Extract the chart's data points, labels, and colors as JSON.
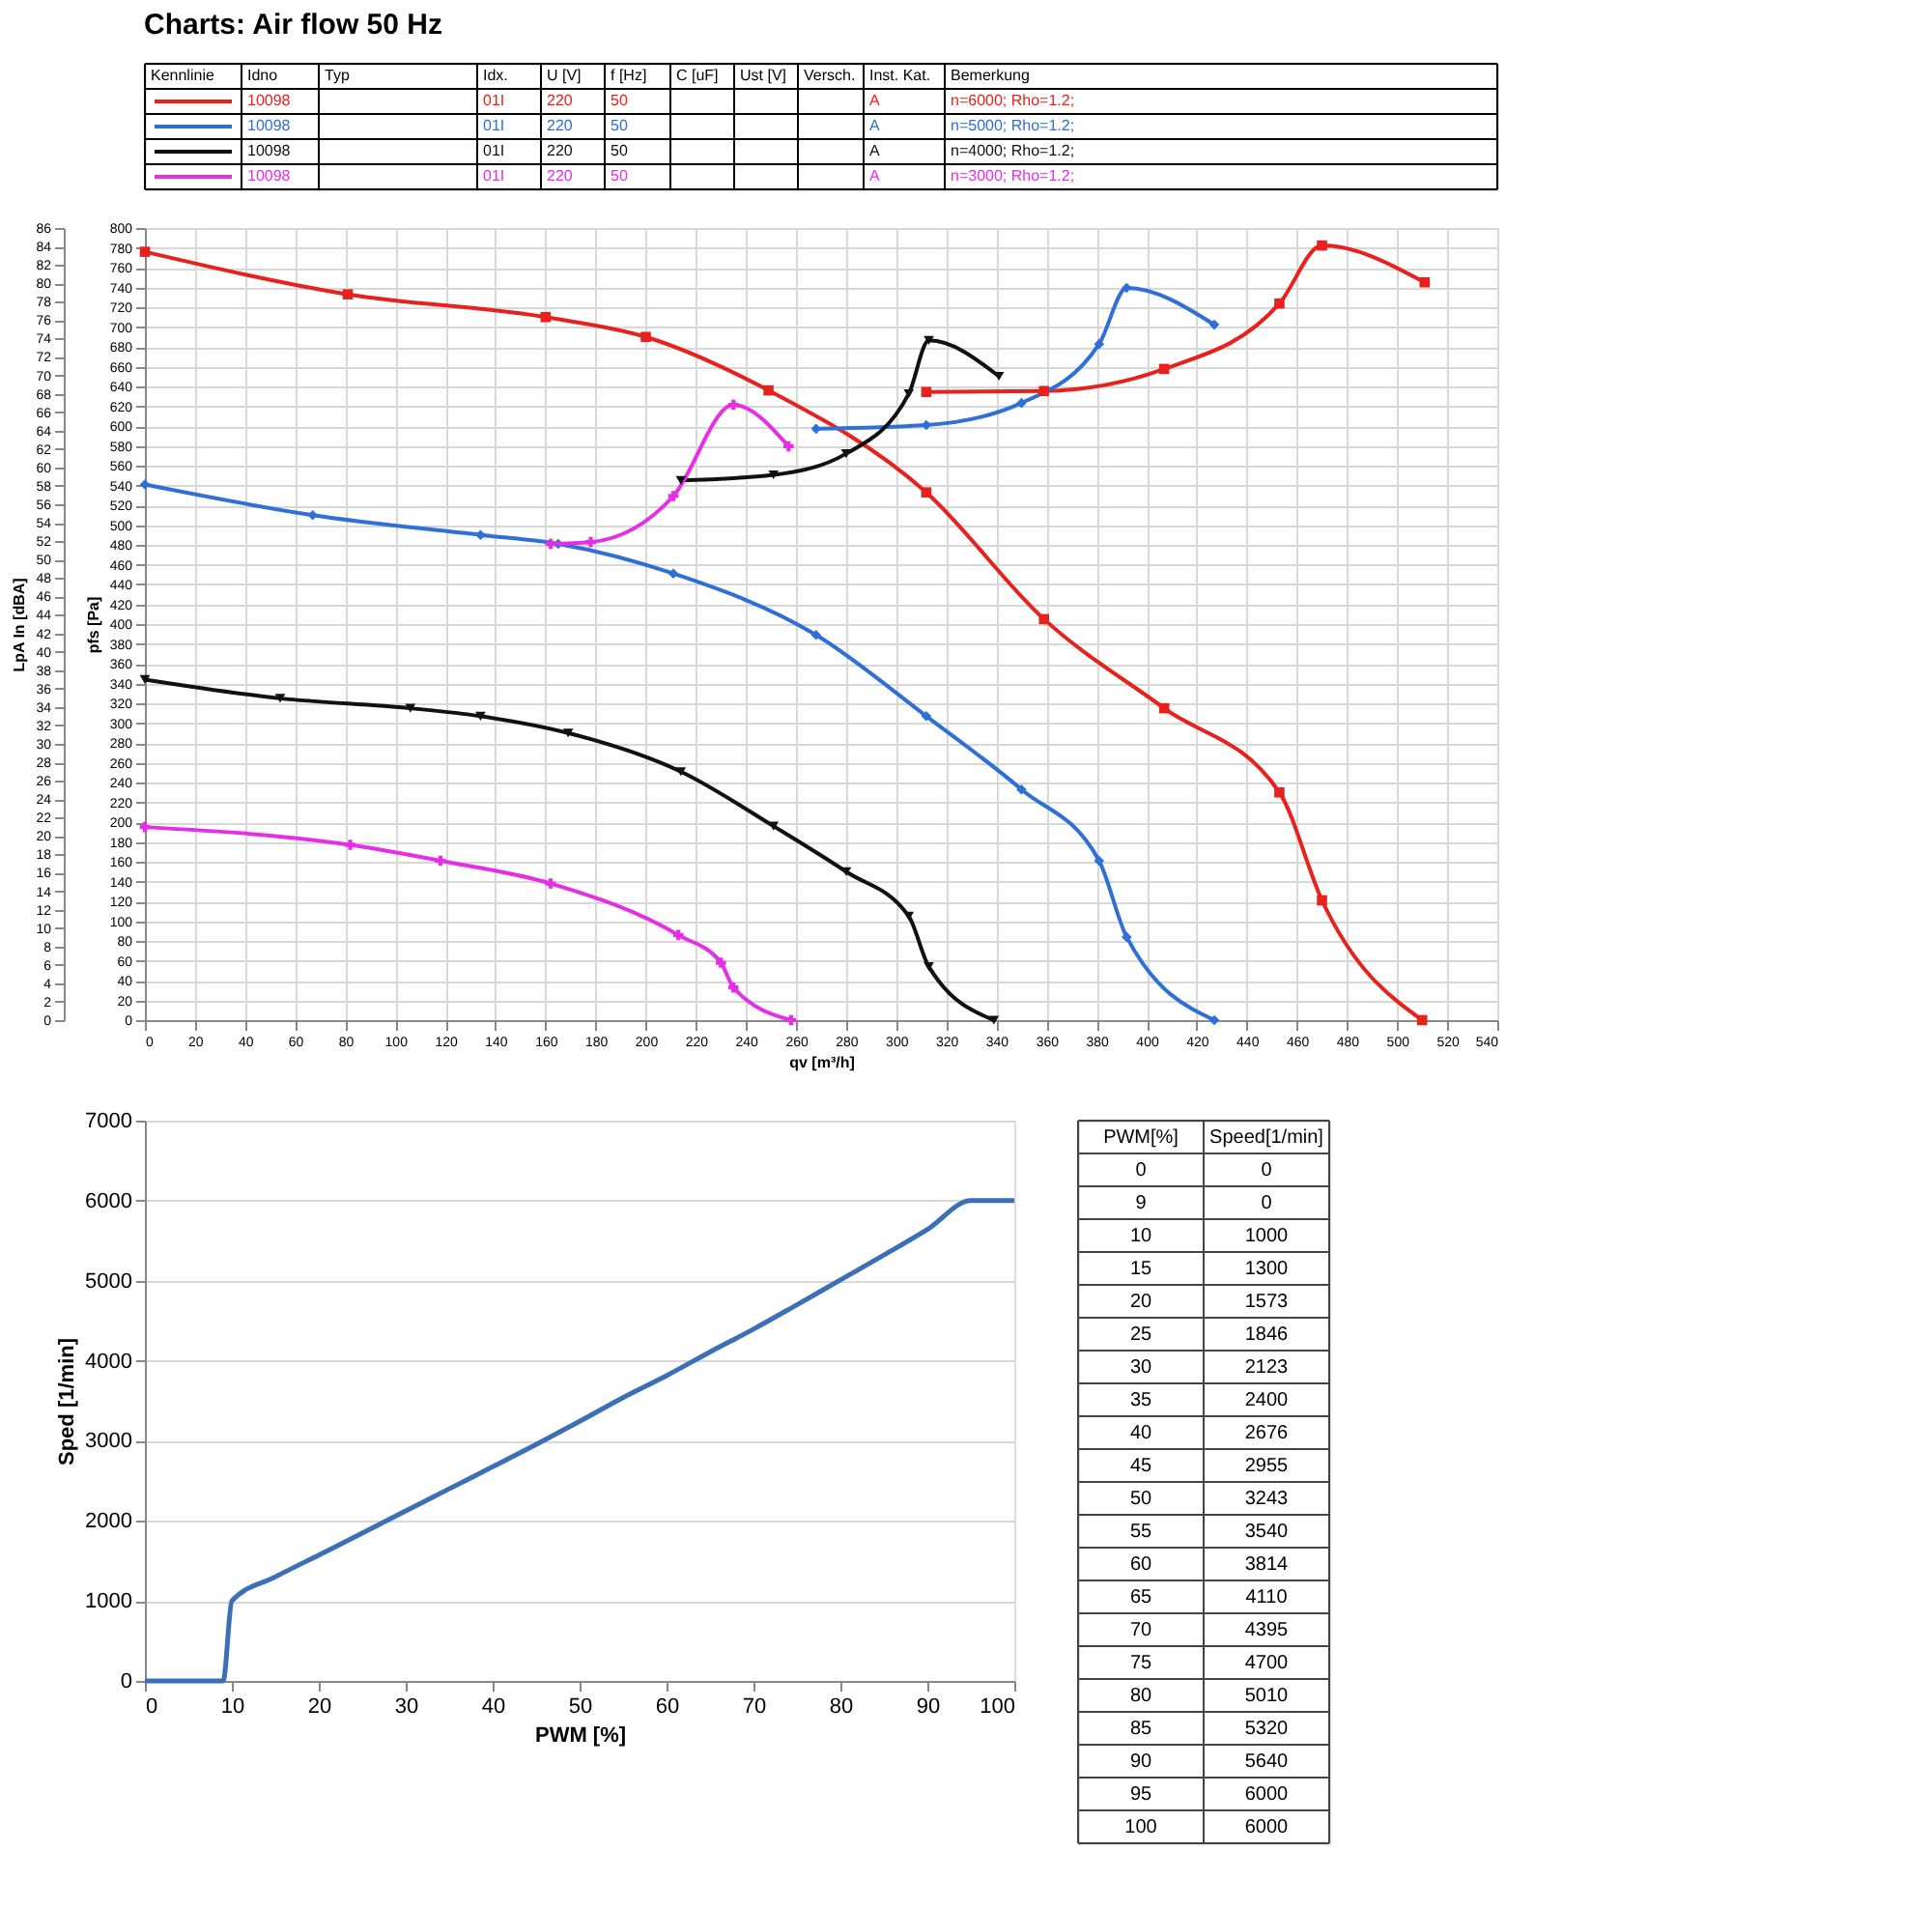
{
  "chart_data": [
    {
      "type": "line",
      "title": "Charts: Air flow 50 Hz",
      "xlabel": "qv [m³/h]",
      "ylabel": "pfs [Pa]",
      "y2label": "LpA In [dBA]",
      "legend": "top",
      "grid": true,
      "annotations": [
        "Kennlinie",
        "Idno",
        "Typ",
        "Idx.",
        "U [V]",
        "f [Hz]",
        "C [uF]",
        "Ust [V]",
        "Versch.",
        "Inst. Kat.",
        "Bemerkung",
        "10098",
        "01I",
        "220",
        "50",
        "A",
        "10098",
        "01I",
        "220",
        "50",
        "A",
        "10098",
        "01I",
        "220",
        "50",
        "A",
        "10098",
        "01I",
        "220",
        "50",
        "A"
      ],
      "series": [
        {
          "name": "n=6000; Rho=1.2;",
          "color": "#e8211c",
          "marker": "square",
          "x": [
            0,
            81,
            160,
            200,
            249,
            312,
            359,
            407,
            453,
            470,
            510
          ],
          "values": [
            776,
            733,
            710,
            690,
            636,
            533,
            405,
            315,
            230,
            121,
            0
          ]
        },
        {
          "name": "n=5000; Rho=1.2;",
          "color": "#2f6fd8",
          "marker": "diamond",
          "x": [
            0,
            67,
            134,
            165,
            211,
            268,
            312,
            350,
            381,
            392,
            427
          ],
          "values": [
            541,
            510,
            490,
            481,
            451,
            389,
            307,
            233,
            161,
            84,
            0
          ]
        },
        {
          "name": "n=4000; Rho=1.2;",
          "color": "#111111",
          "marker": "triangle",
          "x": [
            0,
            54,
            106,
            134,
            169,
            214,
            251,
            280,
            305,
            313,
            339
          ],
          "values": [
            344,
            325,
            315,
            307,
            290,
            251,
            196,
            150,
            105,
            54,
            0
          ]
        },
        {
          "name": "n=3000; Rho=1.2;",
          "color": "#e62ee6",
          "marker": "cross",
          "x": [
            0,
            82,
            118,
            162,
            213,
            230,
            235,
            258
          ],
          "values": [
            195,
            177,
            161,
            138,
            86,
            58,
            33,
            0
          ]
        },
        {
          "color": "#e8211c",
          "marker": "square",
          "axis": "y2",
          "x": [
            312,
            359,
            407,
            453,
            470,
            511
          ],
          "values": [
            68.2,
            68.3,
            70.7,
            77.8,
            84.1,
            80.1
          ]
        },
        {
          "color": "#2f6fd8",
          "marker": "diamond",
          "axis": "y2",
          "x": [
            268,
            312,
            350,
            381,
            392,
            427
          ],
          "values": [
            64.2,
            64.6,
            67.0,
            73.4,
            79.5,
            75.5
          ]
        },
        {
          "color": "#111111",
          "marker": "triangle",
          "axis": "y2",
          "x": [
            214,
            251,
            280,
            305,
            313,
            341
          ],
          "values": [
            58.6,
            59.2,
            61.5,
            68.0,
            73.8,
            69.9
          ]
        },
        {
          "color": "#e62ee6",
          "marker": "cross",
          "axis": "y2",
          "x": [
            162,
            178,
            211,
            235,
            257
          ],
          "values": [
            51.7,
            51.9,
            56.9,
            66.8,
            62.3
          ]
        }
      ],
      "xlim": [
        0,
        540
      ],
      "xticks": [
        0,
        20,
        40,
        60,
        80,
        100,
        120,
        140,
        160,
        180,
        200,
        220,
        240,
        260,
        280,
        300,
        320,
        340,
        360,
        380,
        400,
        420,
        440,
        460,
        480,
        500,
        520,
        540
      ],
      "ylim": [
        0,
        800
      ],
      "yticks": [
        0,
        20,
        40,
        60,
        80,
        100,
        120,
        140,
        160,
        180,
        200,
        220,
        240,
        260,
        280,
        300,
        320,
        340,
        360,
        380,
        400,
        420,
        440,
        460,
        480,
        500,
        520,
        540,
        560,
        580,
        600,
        620,
        640,
        660,
        680,
        700,
        720,
        740,
        760,
        780,
        800
      ],
      "y2lim": [
        0,
        86
      ],
      "y2ticks": [
        0,
        2,
        4,
        6,
        8,
        10,
        12,
        14,
        16,
        18,
        20,
        22,
        24,
        26,
        28,
        30,
        32,
        34,
        36,
        38,
        40,
        42,
        44,
        46,
        48,
        50,
        52,
        54,
        56,
        58,
        60,
        62,
        64,
        66,
        68,
        70,
        72,
        74,
        76,
        78,
        80,
        82,
        84,
        86
      ]
    },
    {
      "type": "line",
      "xlabel": "PWM [%]",
      "ylabel": "Sped [1/min]",
      "color": "#3b6fb6",
      "grid": "y",
      "x": [
        0,
        9,
        10,
        15,
        20,
        25,
        30,
        35,
        40,
        45,
        50,
        55,
        60,
        65,
        70,
        75,
        80,
        85,
        90,
        95,
        100
      ],
      "values": [
        0,
        0,
        1000,
        1300,
        1573,
        1846,
        2123,
        2400,
        2676,
        2955,
        3243,
        3540,
        3814,
        4110,
        4395,
        4700,
        5010,
        5320,
        5640,
        6000,
        6000
      ],
      "xlim": [
        0,
        100
      ],
      "xticks": [
        0,
        10,
        20,
        30,
        40,
        50,
        60,
        70,
        80,
        90,
        100
      ],
      "ylim": [
        0,
        7000
      ],
      "yticks": [
        0,
        1000,
        2000,
        3000,
        4000,
        5000,
        6000,
        7000
      ]
    },
    {
      "type": "other",
      "annotations": [
        "PWM[%]",
        "Speed[1/min]",
        "0",
        "0",
        "9",
        "0",
        "10",
        "1000",
        "15",
        "1300",
        "20",
        "1573",
        "25",
        "1846",
        "30",
        "2123",
        "35",
        "2400",
        "40",
        "2676",
        "45",
        "2955",
        "50",
        "3243",
        "55",
        "3540",
        "60",
        "3814",
        "65",
        "4110",
        "70",
        "4395",
        "75",
        "4700",
        "80",
        "5010",
        "85",
        "5320",
        "90",
        "5640",
        "95",
        "6000",
        "100",
        "6000"
      ]
    }
  ]
}
